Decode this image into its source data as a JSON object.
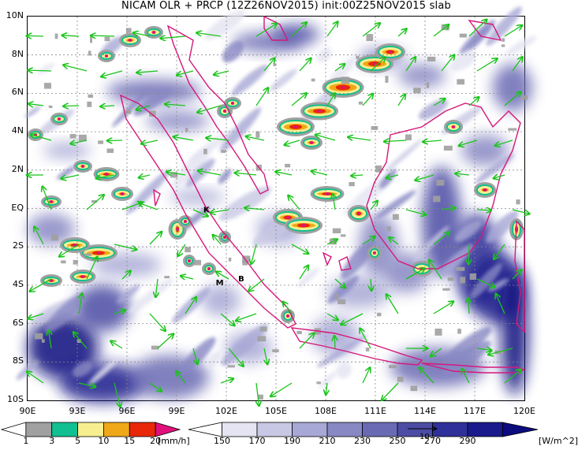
{
  "title": "NICAM OLR + PRCP (12Z26NOV2015) init:00Z25NOV2015 slab",
  "lat_labels": [
    "10N",
    "8N",
    "6N",
    "4N",
    "2N",
    "EQ",
    "2S",
    "4S",
    "6S",
    "8S",
    "10S"
  ],
  "lon_labels": [
    "90E",
    "93E",
    "96E",
    "99E",
    "102E",
    "105E",
    "108E",
    "111E",
    "114E",
    "117E",
    "120E"
  ],
  "map_extent": {
    "lon": [
      90,
      120
    ],
    "lat": [
      -10,
      10
    ]
  },
  "place_markers": [
    {
      "label": "K",
      "lon": 100.8,
      "lat": -0.2
    },
    {
      "label": "M",
      "lon": 101.6,
      "lat": -4.0
    },
    {
      "label": "B",
      "lon": 102.9,
      "lat": -3.8
    }
  ],
  "precip_colorbar": {
    "labels": [
      "1",
      "3",
      "5",
      "10",
      "15",
      "20"
    ],
    "unit": "[mm/h]",
    "colors": [
      "#ffffff",
      "#a0a0a0",
      "#10c090",
      "#f7ee90",
      "#f0a818",
      "#e82808",
      "#e0107a"
    ]
  },
  "olr_colorbar": {
    "labels": [
      "150",
      "170",
      "190",
      "210",
      "230",
      "250",
      "270",
      "290"
    ],
    "unit": "[W/m^2]",
    "colors": [
      "#ffffff",
      "#e4e4f2",
      "#c8c8e4",
      "#a8a8d6",
      "#8888c4",
      "#6a6ab4",
      "#4c4ca4",
      "#30309a",
      "#1a1a8c",
      "#0c0c7e"
    ]
  },
  "wind_reference_label": "10",
  "colors": {
    "coastline": "#d6187a",
    "wind_arrow": "#19c419",
    "olr_dark": "#16168a"
  }
}
